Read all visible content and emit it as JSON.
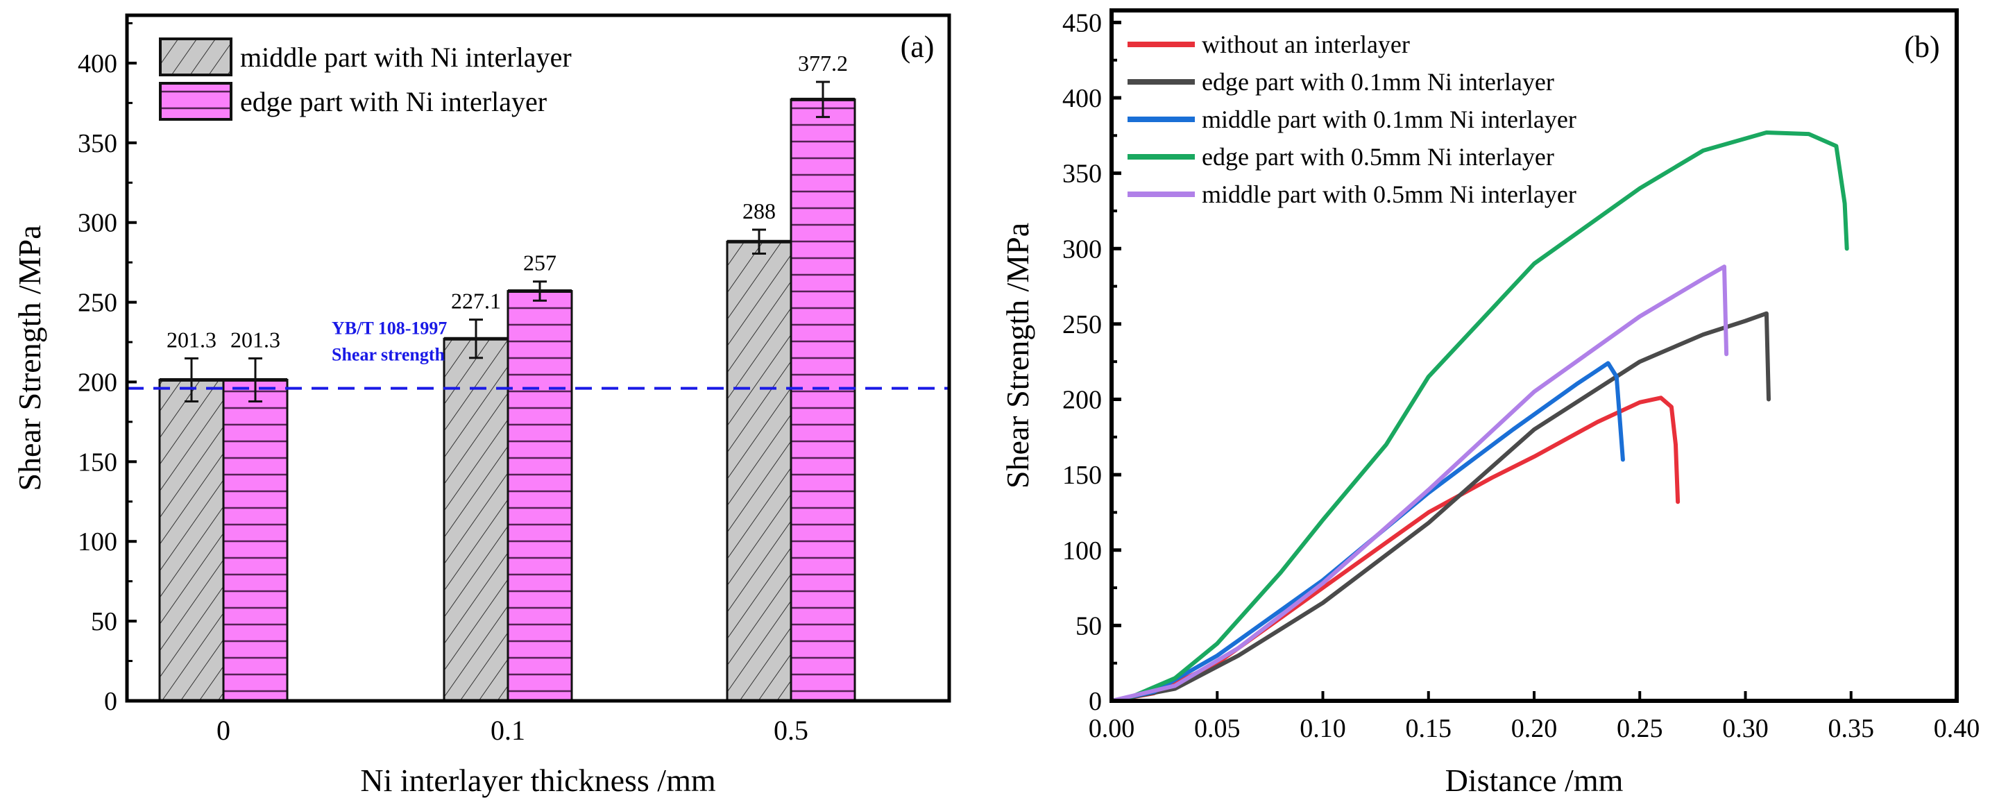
{
  "chart_data": [
    {
      "type": "bar",
      "panel_label": "(a)",
      "xlabel": "Ni interlayer thickness /mm",
      "ylabel": "Shear Strength /MPa",
      "categories": [
        "0",
        "0.1",
        "0.5"
      ],
      "ylim": [
        0,
        430
      ],
      "yticks": [
        0,
        50,
        100,
        150,
        200,
        250,
        300,
        350,
        400
      ],
      "legend_position": "top-left",
      "series": [
        {
          "name": "middle part with Ni interlayer",
          "color": "#c8c8c8",
          "pattern": "diagonal-hatch",
          "values": [
            201.3,
            227.1,
            288
          ],
          "errors": [
            13.5,
            12,
            7.5
          ],
          "labels": [
            "201.3",
            "227.1",
            "288"
          ]
        },
        {
          "name": "edge part with Ni interlayer",
          "color": "#fa80fa",
          "pattern": "horizontal-lines",
          "values": [
            201.3,
            257,
            377.2
          ],
          "errors": [
            13.5,
            6,
            11
          ],
          "labels": [
            "201.3",
            "257",
            "377.2"
          ]
        }
      ],
      "reference_line": {
        "value": 196,
        "color": "#1a1ae6",
        "label_line1": "YB/T 108-1997",
        "label_line2": "Shear strength"
      }
    },
    {
      "type": "line",
      "panel_label": "(b)",
      "xlabel": "Distance /mm",
      "ylabel": "Shear Strength /MPa",
      "xlim": [
        0,
        0.4
      ],
      "ylim": [
        0,
        458
      ],
      "xticks": [
        "0.00",
        "0.05",
        "0.10",
        "0.15",
        "0.20",
        "0.25",
        "0.30",
        "0.35",
        "0.40"
      ],
      "yticks": [
        0,
        50,
        100,
        150,
        200,
        250,
        300,
        350,
        400,
        450
      ],
      "legend_position": "top-left",
      "series": [
        {
          "name": "without an interlayer",
          "color": "#e8303a",
          "points": [
            [
              0,
              0
            ],
            [
              0.02,
              5
            ],
            [
              0.05,
              25
            ],
            [
              0.1,
              75
            ],
            [
              0.15,
              125
            ],
            [
              0.18,
              148
            ],
            [
              0.2,
              162
            ],
            [
              0.23,
              185
            ],
            [
              0.25,
              198
            ],
            [
              0.26,
              201
            ],
            [
              0.265,
              195
            ],
            [
              0.267,
              170
            ],
            [
              0.268,
              132
            ]
          ]
        },
        {
          "name": "edge part with 0.1mm Ni interlayer",
          "color": "#4a4a4a",
          "points": [
            [
              0,
              0
            ],
            [
              0.03,
              8
            ],
            [
              0.06,
              30
            ],
            [
              0.1,
              65
            ],
            [
              0.15,
              118
            ],
            [
              0.2,
              180
            ],
            [
              0.25,
              225
            ],
            [
              0.28,
              243
            ],
            [
              0.3,
              252
            ],
            [
              0.31,
              257
            ],
            [
              0.311,
              200
            ]
          ]
        },
        {
          "name": "middle part with 0.1mm Ni interlayer",
          "color": "#1a6fd6",
          "points": [
            [
              0,
              0
            ],
            [
              0.02,
              6
            ],
            [
              0.05,
              30
            ],
            [
              0.1,
              80
            ],
            [
              0.15,
              138
            ],
            [
              0.19,
              180
            ],
            [
              0.22,
              210
            ],
            [
              0.235,
              224
            ],
            [
              0.239,
              215
            ],
            [
              0.242,
              160
            ]
          ]
        },
        {
          "name": "edge part with 0.5mm Ni interlayer",
          "color": "#1aa860",
          "points": [
            [
              0,
              0
            ],
            [
              0.01,
              3
            ],
            [
              0.03,
              15
            ],
            [
              0.05,
              38
            ],
            [
              0.08,
              85
            ],
            [
              0.1,
              120
            ],
            [
              0.13,
              170
            ],
            [
              0.15,
              215
            ],
            [
              0.2,
              290
            ],
            [
              0.25,
              340
            ],
            [
              0.28,
              365
            ],
            [
              0.31,
              377
            ],
            [
              0.33,
              376
            ],
            [
              0.343,
              368
            ],
            [
              0.347,
              330
            ],
            [
              0.348,
              300
            ]
          ]
        },
        {
          "name": "middle part with 0.5mm Ni interlayer",
          "color": "#b080e8",
          "points": [
            [
              0,
              0
            ],
            [
              0.03,
              10
            ],
            [
              0.06,
              35
            ],
            [
              0.1,
              78
            ],
            [
              0.15,
              140
            ],
            [
              0.2,
              205
            ],
            [
              0.25,
              255
            ],
            [
              0.28,
              280
            ],
            [
              0.29,
              288
            ],
            [
              0.291,
              230
            ]
          ]
        }
      ]
    }
  ]
}
